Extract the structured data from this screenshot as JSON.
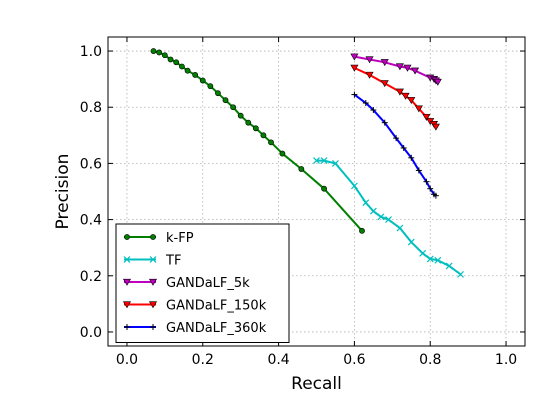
{
  "chart_data": {
    "type": "line",
    "xlabel": "Recall",
    "ylabel": "Precision",
    "xlim": [
      -0.05,
      1.05
    ],
    "ylim": [
      -0.05,
      1.05
    ],
    "xticks": [
      "0.0",
      "0.2",
      "0.4",
      "0.6",
      "0.8",
      "1.0"
    ],
    "yticks": [
      "0.0",
      "0.2",
      "0.4",
      "0.6",
      "0.8",
      "1.0"
    ],
    "xtick_values": [
      0.0,
      0.2,
      0.4,
      0.6,
      0.8,
      1.0
    ],
    "ytick_values": [
      0.0,
      0.2,
      0.4,
      0.6,
      0.8,
      1.0
    ],
    "grid": true,
    "legend_position": "bottom-left",
    "series": [
      {
        "name": "k-FP",
        "color": "#007f00",
        "marker": "circle",
        "x": [
          0.07,
          0.085,
          0.1,
          0.115,
          0.13,
          0.145,
          0.16,
          0.18,
          0.2,
          0.22,
          0.24,
          0.26,
          0.28,
          0.3,
          0.32,
          0.34,
          0.36,
          0.38,
          0.41,
          0.46,
          0.52,
          0.62
        ],
        "y": [
          1.0,
          0.995,
          0.985,
          0.97,
          0.96,
          0.945,
          0.93,
          0.915,
          0.895,
          0.875,
          0.85,
          0.825,
          0.8,
          0.77,
          0.745,
          0.725,
          0.7,
          0.675,
          0.635,
          0.58,
          0.51,
          0.36
        ]
      },
      {
        "name": "TF",
        "color": "#00bfbf",
        "marker": "x",
        "x": [
          0.5,
          0.52,
          0.55,
          0.6,
          0.63,
          0.65,
          0.67,
          0.69,
          0.72,
          0.75,
          0.78,
          0.8,
          0.82,
          0.85,
          0.88
        ],
        "y": [
          0.61,
          0.61,
          0.6,
          0.52,
          0.46,
          0.43,
          0.41,
          0.4,
          0.37,
          0.32,
          0.28,
          0.26,
          0.255,
          0.235,
          0.205
        ]
      },
      {
        "name": "GANDaLF_5k",
        "color": "#bf00bf",
        "marker": "triangle-down",
        "x": [
          0.6,
          0.64,
          0.68,
          0.72,
          0.74,
          0.76,
          0.8,
          0.81,
          0.815,
          0.82
        ],
        "y": [
          0.98,
          0.97,
          0.96,
          0.945,
          0.94,
          0.93,
          0.905,
          0.9,
          0.895,
          0.89
        ]
      },
      {
        "name": "GANDaLF_150k",
        "color": "#ff0000",
        "marker": "triangle-down",
        "x": [
          0.6,
          0.64,
          0.68,
          0.72,
          0.735,
          0.75,
          0.77,
          0.79,
          0.8,
          0.81,
          0.815
        ],
        "y": [
          0.94,
          0.915,
          0.885,
          0.855,
          0.84,
          0.825,
          0.795,
          0.765,
          0.75,
          0.74,
          0.73
        ]
      },
      {
        "name": "GANDaLF_360k",
        "color": "#0000ff",
        "marker": "plus",
        "x": [
          0.6,
          0.63,
          0.65,
          0.68,
          0.71,
          0.73,
          0.75,
          0.77,
          0.79,
          0.8,
          0.81,
          0.815
        ],
        "y": [
          0.845,
          0.815,
          0.79,
          0.745,
          0.69,
          0.655,
          0.62,
          0.575,
          0.535,
          0.51,
          0.49,
          0.485
        ]
      }
    ]
  }
}
